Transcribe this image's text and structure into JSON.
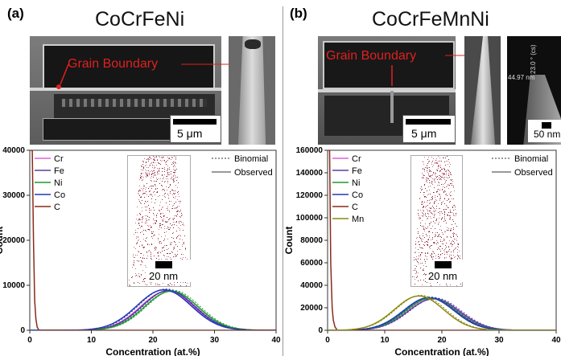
{
  "panels": [
    {
      "id": "a",
      "label": "(a)",
      "title": "CoCrFeNi",
      "grain_boundary": "Grain Boundary",
      "scale_sem": "5 μm",
      "inset_scale": "20 nm"
    },
    {
      "id": "b",
      "label": "(b)",
      "title": "CoCrFeMnNi",
      "grain_boundary": "Grain Boundary",
      "scale_sem": "5 μm",
      "tip_scale": "50 nm",
      "inset_scale": "20 nm",
      "tip_annotations": [
        "23.0 ° (cs)",
        "44.97 nm"
      ]
    }
  ],
  "colors": {
    "Cr": "#e060d8",
    "Fe": "#5a3fa0",
    "Ni": "#1f9a2f",
    "Co": "#2039b8",
    "C": "#8a2a1a",
    "Mn": "#8a8a10"
  },
  "chart_data": [
    {
      "type": "line",
      "xlabel": "Concentration (at.%)",
      "ylabel": "Count",
      "xlim": [
        0,
        40
      ],
      "ylim": [
        0,
        40000
      ],
      "xticks": [
        "0",
        "10",
        "20",
        "30",
        "40"
      ],
      "yticks": [
        "0",
        "10000",
        "20000",
        "30000",
        "40000"
      ],
      "legend_left": [
        "Cr",
        "Fe",
        "Ni",
        "Co",
        "C"
      ],
      "legend_right": [
        "Binomial",
        "Observed"
      ],
      "series": [
        {
          "name": "Cr",
          "mu": 22.3,
          "sigma": 4.3,
          "peak": 8700
        },
        {
          "name": "Fe",
          "mu": 22.5,
          "sigma": 4.3,
          "peak": 8800
        },
        {
          "name": "Ni",
          "mu": 23.0,
          "sigma": 4.3,
          "peak": 8700
        },
        {
          "name": "Co",
          "mu": 21.8,
          "sigma": 4.4,
          "peak": 9000
        },
        {
          "name": "C",
          "points": [
            [
              0,
              40000
            ],
            [
              0.4,
              40000
            ],
            [
              0.6,
              20000
            ],
            [
              0.8,
              6500
            ],
            [
              1.0,
              2500
            ],
            [
              1.2,
              700
            ],
            [
              1.5,
              0
            ],
            [
              40,
              0
            ]
          ]
        }
      ]
    },
    {
      "type": "line",
      "xlabel": "Concentration (at.%)",
      "ylabel": "Count",
      "xlim": [
        0,
        40
      ],
      "ylim": [
        0,
        160000
      ],
      "xticks": [
        "0",
        "10",
        "20",
        "30",
        "40"
      ],
      "yticks": [
        "0",
        "20000",
        "40000",
        "60000",
        "80000",
        "100000",
        "120000",
        "140000",
        "160000"
      ],
      "legend_left": [
        "Cr",
        "Fe",
        "Ni",
        "Co",
        "C",
        "Mn"
      ],
      "legend_right": [
        "Binomial",
        "Observed"
      ],
      "series": [
        {
          "name": "Cr",
          "mu": 18.2,
          "sigma": 4.5,
          "peak": 28500
        },
        {
          "name": "Fe",
          "mu": 18.6,
          "sigma": 4.5,
          "peak": 28000
        },
        {
          "name": "Ni",
          "mu": 18.0,
          "sigma": 4.4,
          "peak": 28500
        },
        {
          "name": "Co",
          "mu": 17.7,
          "sigma": 4.4,
          "peak": 29000
        },
        {
          "name": "C",
          "points": [
            [
              0,
              160000
            ],
            [
              0.35,
              160000
            ],
            [
              0.55,
              60000
            ],
            [
              0.8,
              20000
            ],
            [
              1.0,
              9000
            ],
            [
              1.3,
              3000
            ],
            [
              1.7,
              0
            ],
            [
              40,
              0
            ]
          ]
        },
        {
          "name": "Mn",
          "mu": 16.0,
          "sigma": 4.3,
          "peak": 30500
        }
      ]
    }
  ]
}
